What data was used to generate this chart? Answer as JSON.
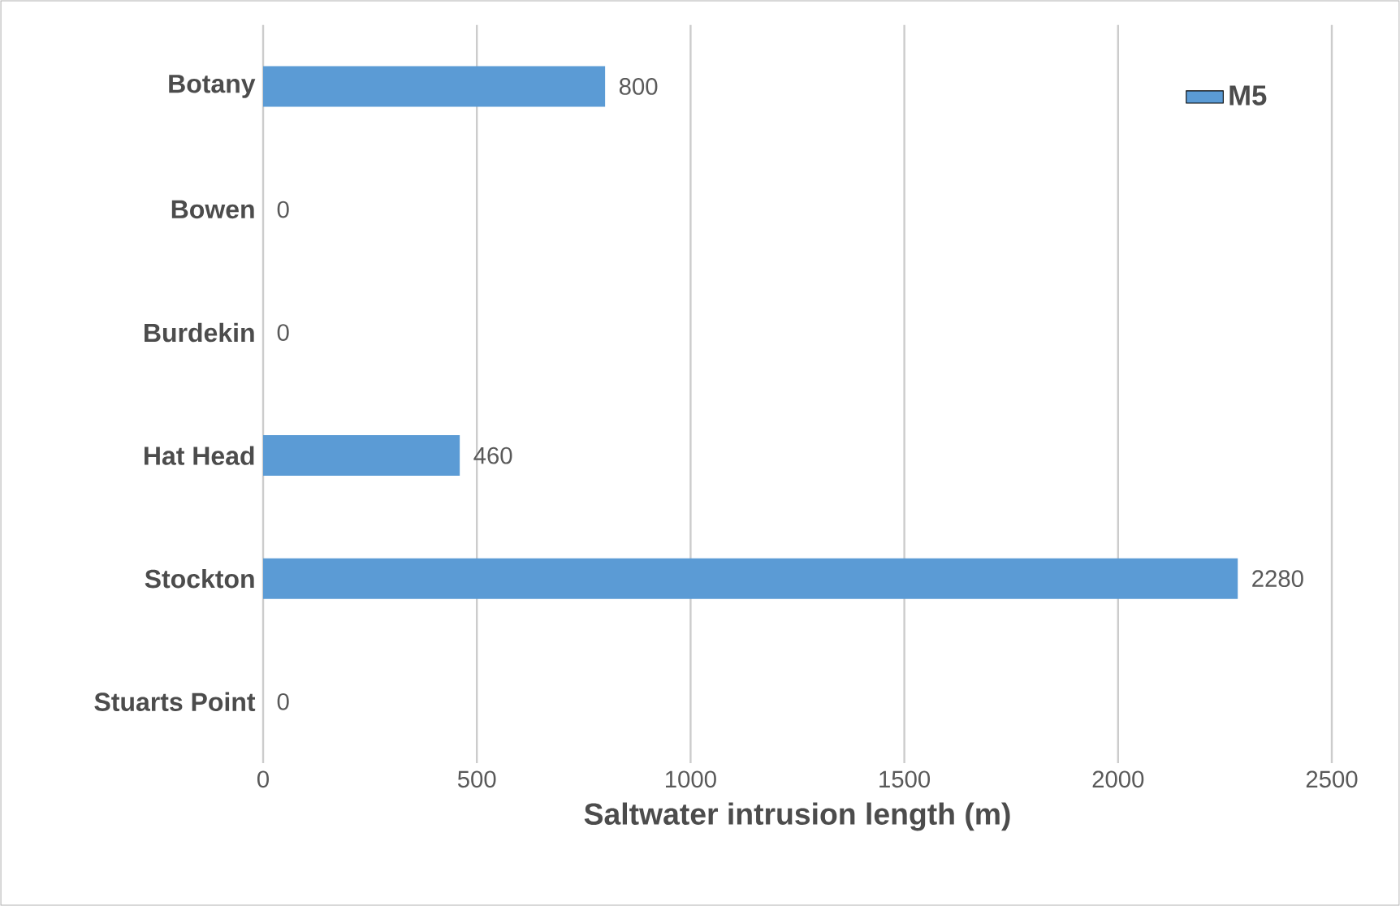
{
  "chart_data": {
    "type": "bar",
    "orientation": "horizontal",
    "xlabel": "Saltwater intrusion length (m)",
    "categories": [
      "Botany",
      "Bowen",
      "Burdekin",
      "Hat Head",
      "Stockton",
      "Stuarts Point"
    ],
    "series": [
      {
        "name": "M5",
        "color": "#5b9bd5",
        "values": [
          800,
          0,
          0,
          460,
          2280,
          0
        ]
      }
    ],
    "xlim": [
      0,
      2500
    ],
    "xticks": [
      0,
      500,
      1000,
      1500,
      2000,
      2500
    ],
    "grid": "x",
    "legend": "top right",
    "data_labels": true
  }
}
